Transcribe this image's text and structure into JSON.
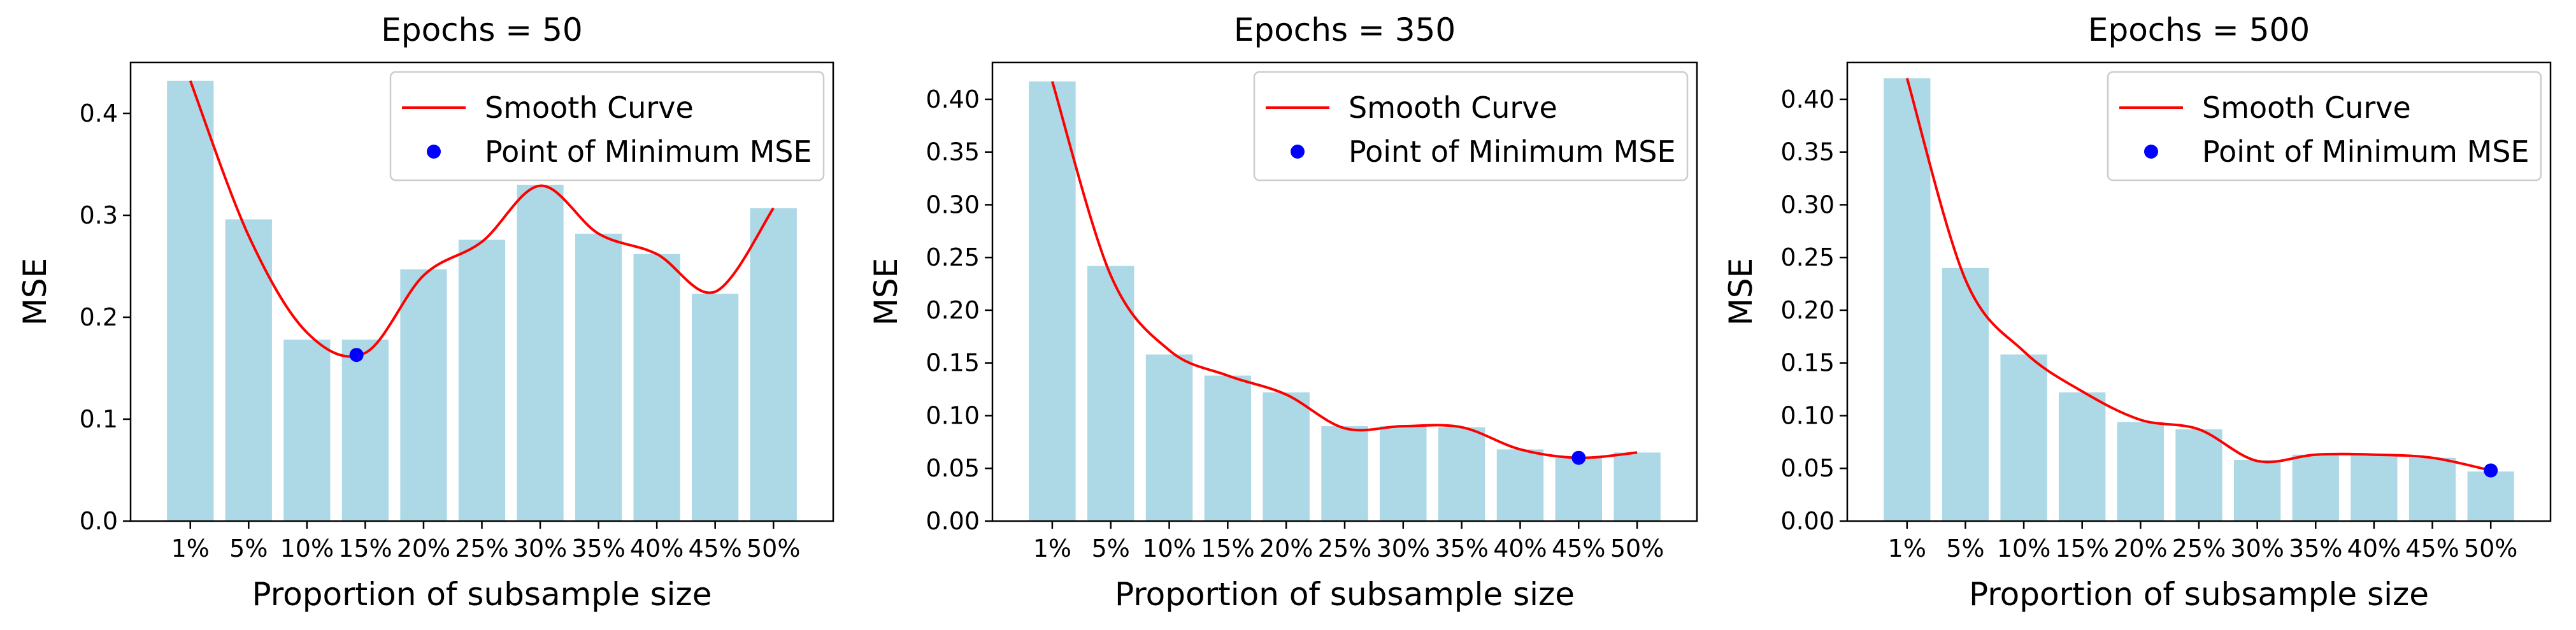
{
  "chart_data": [
    {
      "type": "bar",
      "title": "Epochs = 50",
      "xlabel": "Proportion of subsample size",
      "ylabel": "MSE",
      "ylim": [
        0,
        0.45
      ],
      "yticks": [
        0.0,
        0.1,
        0.2,
        0.3,
        0.4
      ],
      "ytick_labels": [
        "0.0",
        "0.1",
        "0.2",
        "0.3",
        "0.4"
      ],
      "categories": [
        "1%",
        "5%",
        "10%",
        "15%",
        "20%",
        "25%",
        "30%",
        "35%",
        "40%",
        "45%",
        "50%"
      ],
      "values": [
        0.432,
        0.296,
        0.178,
        0.178,
        0.247,
        0.276,
        0.33,
        0.282,
        0.262,
        0.223,
        0.307
      ],
      "smooth_curve": [
        0.432,
        0.28,
        0.185,
        0.165,
        0.241,
        0.274,
        0.329,
        0.282,
        0.262,
        0.225,
        0.307
      ],
      "min_point": {
        "x": 2.85,
        "y": 0.163
      },
      "legend": {
        "curve": "Smooth Curve",
        "point": "Point of Minimum MSE",
        "location": "top-right"
      }
    },
    {
      "type": "bar",
      "title": "Epochs = 350",
      "xlabel": "Proportion of subsample size",
      "ylabel": "MSE",
      "ylim": [
        0,
        0.435
      ],
      "yticks": [
        0.0,
        0.05,
        0.1,
        0.15,
        0.2,
        0.25,
        0.3,
        0.35,
        0.4
      ],
      "ytick_labels": [
        "0.00",
        "0.05",
        "0.10",
        "0.15",
        "0.20",
        "0.25",
        "0.30",
        "0.35",
        "0.40"
      ],
      "categories": [
        "1%",
        "5%",
        "10%",
        "15%",
        "20%",
        "25%",
        "30%",
        "35%",
        "40%",
        "45%",
        "50%"
      ],
      "values": [
        0.417,
        0.242,
        0.158,
        0.138,
        0.122,
        0.09,
        0.09,
        0.089,
        0.068,
        0.06,
        0.065
      ],
      "smooth_curve": [
        0.417,
        0.233,
        0.162,
        0.138,
        0.12,
        0.088,
        0.09,
        0.089,
        0.068,
        0.06,
        0.065
      ],
      "min_point": {
        "x": 9.0,
        "y": 0.06
      },
      "legend": {
        "curve": "Smooth Curve",
        "point": "Point of Minimum MSE",
        "location": "top-right"
      }
    },
    {
      "type": "bar",
      "title": "Epochs = 500",
      "xlabel": "Proportion of subsample size",
      "ylabel": "MSE",
      "ylim": [
        0,
        0.435
      ],
      "yticks": [
        0.0,
        0.05,
        0.1,
        0.15,
        0.2,
        0.25,
        0.3,
        0.35,
        0.4
      ],
      "ytick_labels": [
        "0.00",
        "0.05",
        "0.10",
        "0.15",
        "0.20",
        "0.25",
        "0.30",
        "0.35",
        "0.40"
      ],
      "categories": [
        "1%",
        "5%",
        "10%",
        "15%",
        "20%",
        "25%",
        "30%",
        "35%",
        "40%",
        "45%",
        "50%"
      ],
      "values": [
        0.42,
        0.24,
        0.158,
        0.122,
        0.094,
        0.087,
        0.058,
        0.063,
        0.063,
        0.06,
        0.047
      ],
      "smooth_curve": [
        0.42,
        0.229,
        0.161,
        0.123,
        0.096,
        0.087,
        0.057,
        0.063,
        0.063,
        0.06,
        0.048
      ],
      "min_point": {
        "x": 10.0,
        "y": 0.048
      },
      "legend": {
        "curve": "Smooth Curve",
        "point": "Point of Minimum MSE",
        "location": "top-right"
      }
    }
  ],
  "colors": {
    "bar": "#add8e6",
    "curve": "#ff0000",
    "point": "#0000ff",
    "axis": "#000000",
    "legend_border": "#cccccc"
  }
}
